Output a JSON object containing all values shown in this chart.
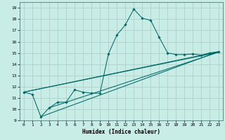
{
  "title": "",
  "xlabel": "Humidex (Indice chaleur)",
  "bg_color": "#c8ede6",
  "grid_color": "#b0d0c8",
  "line_color": "#006868",
  "xlim": [
    -0.5,
    23.5
  ],
  "ylim": [
    9,
    19.5
  ],
  "xticks": [
    0,
    1,
    2,
    3,
    4,
    5,
    6,
    7,
    8,
    9,
    10,
    11,
    12,
    13,
    14,
    15,
    16,
    17,
    18,
    19,
    20,
    21,
    22,
    23
  ],
  "yticks": [
    9,
    10,
    11,
    12,
    13,
    14,
    15,
    16,
    17,
    18,
    19
  ],
  "main_x": [
    0,
    1,
    2,
    3,
    4,
    5,
    6,
    7,
    8,
    9,
    10,
    11,
    12,
    13,
    14,
    15,
    16,
    17,
    18,
    19,
    20,
    21,
    22,
    23
  ],
  "main_y": [
    11.5,
    11.3,
    9.3,
    10.1,
    10.6,
    10.6,
    11.7,
    11.5,
    11.4,
    11.4,
    14.9,
    16.6,
    17.5,
    18.9,
    18.1,
    17.9,
    16.4,
    15.0,
    14.85,
    14.85,
    14.9,
    14.8,
    15.0,
    15.1
  ],
  "line1_x": [
    0,
    23
  ],
  "line1_y": [
    11.5,
    15.1
  ],
  "line2_x": [
    2,
    23
  ],
  "line2_y": [
    9.3,
    15.1
  ],
  "line3_x": [
    0,
    23
  ],
  "line3_y": [
    11.5,
    15.05
  ],
  "line4_x": [
    3,
    23
  ],
  "line4_y": [
    10.1,
    15.05
  ]
}
